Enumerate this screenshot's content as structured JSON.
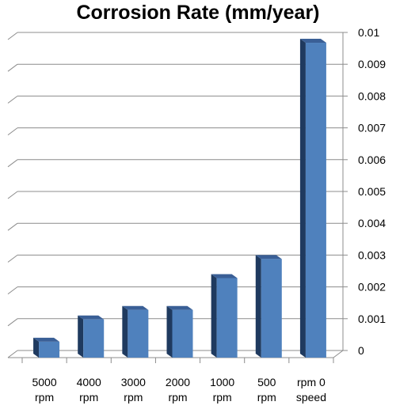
{
  "chart_data": {
    "type": "bar",
    "title": "Corrosion Rate (mm/year)",
    "categories": [
      "5000 rpm",
      "4000 rpm",
      "3000 rpm",
      "2000 rpm",
      "1000 rpm",
      "500 rpm",
      "0 rpm speed"
    ],
    "category_lines": [
      [
        "5000",
        "rpm"
      ],
      [
        "4000",
        "rpm"
      ],
      [
        "3000",
        "rpm"
      ],
      [
        "2000",
        "rpm"
      ],
      [
        "1000",
        "rpm"
      ],
      [
        "500",
        "rpm"
      ],
      [
        "rpm  0",
        "speed"
      ]
    ],
    "values": [
      0.0005,
      0.0012,
      0.0015,
      0.0015,
      0.0025,
      0.0031,
      0.0099
    ],
    "ylim": [
      0,
      0.01
    ],
    "yticks": [
      "0",
      "0.001",
      "0.002",
      "0.003",
      "0.004",
      "0.005",
      "0.006",
      "0.007",
      "0.008",
      "0.009",
      "0.01"
    ],
    "y_axis_side": "right",
    "grid": true,
    "bar_color": "#4f81bd",
    "bar_side_color": "#1f3a5f",
    "bar_top_color": "#3a5f96"
  }
}
